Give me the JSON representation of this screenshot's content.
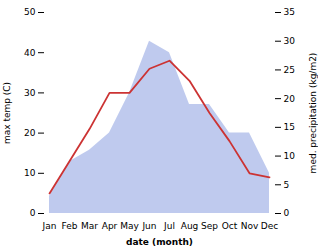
{
  "chart_data": {
    "type": "line",
    "categories": [
      "Jan",
      "Feb",
      "Mar",
      "Apr",
      "May",
      "Jun",
      "Jul",
      "Aug",
      "Sep",
      "Oct",
      "Nov",
      "Dec"
    ],
    "series": [
      {
        "type": "area",
        "axis": "y2",
        "color": "#aab8e8",
        "values": [
          3,
          9,
          11,
          14,
          21,
          30,
          28,
          19,
          19,
          14,
          14,
          7
        ]
      },
      {
        "type": "line",
        "color": "#cc3333",
        "values": [
          5,
          13,
          21,
          30,
          30,
          36,
          38,
          33,
          25,
          18,
          10,
          9
        ]
      }
    ],
    "xlabel": "date (month)",
    "ylabel": "max temp (C)",
    "y2label": "med. precipitation (kg/m2)",
    "ylim": [
      0,
      50
    ],
    "yticks": [
      0,
      10,
      20,
      30,
      40,
      50
    ],
    "y2lim": [
      0,
      35
    ],
    "y2ticks": [
      0,
      5,
      10,
      15,
      20,
      25,
      30,
      35
    ],
    "grid": false
  }
}
